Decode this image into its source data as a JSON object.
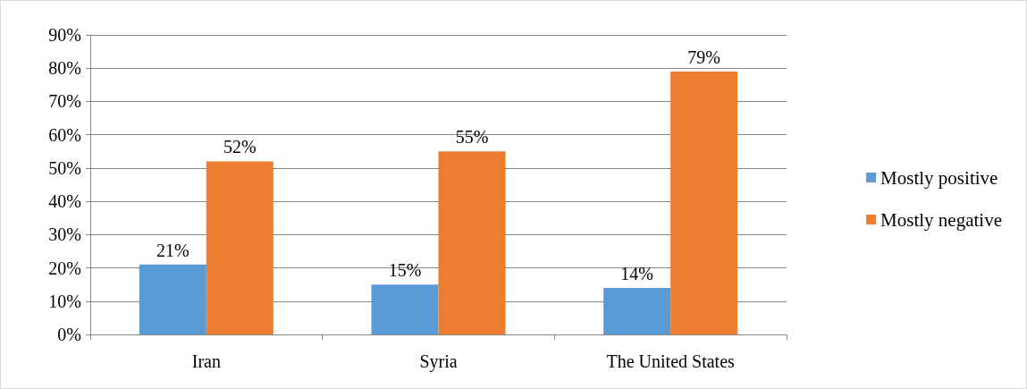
{
  "chart_data": {
    "type": "bar",
    "categories": [
      "Iran",
      "Syria",
      "The United States"
    ],
    "series": [
      {
        "name": "Mostly positive",
        "color": "#5b9bd5",
        "values": [
          21,
          15,
          14
        ],
        "value_labels": [
          "21%",
          "15%",
          "14%"
        ]
      },
      {
        "name": "Mostly negative",
        "color": "#ed7d31",
        "values": [
          52,
          55,
          79
        ],
        "value_labels": [
          "52%",
          "55%",
          "79%"
        ]
      }
    ],
    "ylim": [
      0,
      90
    ],
    "yticks": [
      {
        "value": 0,
        "label": "0%"
      },
      {
        "value": 10,
        "label": "10%"
      },
      {
        "value": 20,
        "label": "20%"
      },
      {
        "value": 30,
        "label": "30%"
      },
      {
        "value": 40,
        "label": "40%"
      },
      {
        "value": 50,
        "label": "50%"
      },
      {
        "value": 60,
        "label": "60%"
      },
      {
        "value": 70,
        "label": "70%"
      },
      {
        "value": 80,
        "label": "80%"
      },
      {
        "value": 90,
        "label": "90%"
      }
    ],
    "grid": "y",
    "legend": "right"
  }
}
